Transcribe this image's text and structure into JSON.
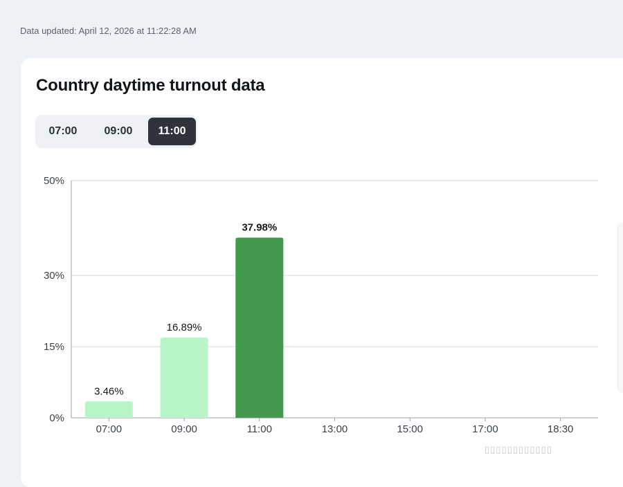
{
  "header": {
    "updated_text": "Data updated: April 12, 2026 at 11:22:28 AM"
  },
  "card": {
    "title": "Country daytime turnout data"
  },
  "tabs": [
    {
      "label": "07:00",
      "active": false
    },
    {
      "label": "09:00",
      "active": false
    },
    {
      "label": "11:00",
      "active": true
    }
  ],
  "colors": {
    "bar_light": "#b8f5c8",
    "bar_active": "#439a4e",
    "gridline": "#d5d8dd",
    "axis": "#9aa0a8",
    "tick_text": "#3c4048",
    "label_text": "#15181c"
  },
  "chart_data": {
    "type": "bar",
    "categories": [
      "07:00",
      "09:00",
      "11:00",
      "13:00",
      "15:00",
      "17:00",
      "18:30"
    ],
    "values": [
      3.46,
      16.89,
      37.98,
      null,
      null,
      null,
      null
    ],
    "data_labels": [
      "3.46%",
      "16.89%",
      "37.98%",
      "",
      "",
      "",
      ""
    ],
    "highlighted_index": 2,
    "yticks": [
      0,
      15,
      30,
      50
    ],
    "ytick_labels": [
      "0%",
      "15%",
      "30%",
      "50%"
    ],
    "ylim": [
      0,
      50
    ],
    "grid": true
  }
}
